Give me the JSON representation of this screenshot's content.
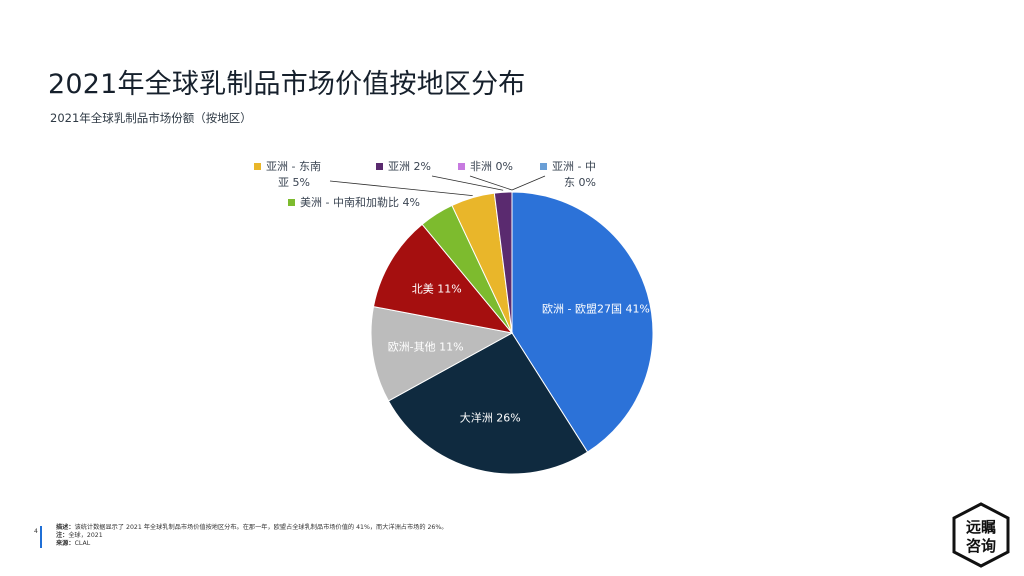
{
  "page": {
    "title": "2021年全球乳制品市场价值按地区分布",
    "subtitle": "2021年全球乳制品市场份额（按地区）",
    "page_number": "4",
    "footer": {
      "desc_label": "描述：",
      "desc_text": "该统计数据显示了 2021 年全球乳制品市场价值按地区分布。在那一年，欧盟占全球乳制品市场价值的 41%，而大洋洲占市场的 26%。",
      "note_label": "注：",
      "note_text": "全球，2021",
      "source_label": "来源：",
      "source_text": "CLAL"
    },
    "logo": {
      "line1": "远瞩",
      "line2": "咨询"
    }
  },
  "chart_data": {
    "type": "pie",
    "slices": [
      {
        "label": "欧洲 - 欧盟27国 41%",
        "value": 41,
        "color": "#2c72d8"
      },
      {
        "label": "大洋洲 26%",
        "value": 26,
        "color": "#0f2a3f"
      },
      {
        "label": "欧洲-其他 11%",
        "value": 11,
        "color": "#bcbcbc"
      },
      {
        "label": "北美 11%",
        "value": 11,
        "color": "#a50f0f"
      },
      {
        "label": "美洲 - 中南和加勒比 4%",
        "value": 4,
        "color": "#7dbb2e"
      },
      {
        "label": "亚洲 - 东南亚 5%",
        "value": 5,
        "color": "#e9b62a"
      },
      {
        "label": "亚洲 2%",
        "value": 2,
        "color": "#5a2a6f"
      },
      {
        "label": "非洲 0%",
        "value": 0,
        "color": "#c77ae0"
      },
      {
        "label": "亚洲 - 中东 0%",
        "value": 0,
        "color": "#6a9fd6"
      }
    ],
    "external_labels": [
      {
        "lines": [
          "亚洲 - 东南",
          "亚 5%"
        ],
        "color": "#e9b62a"
      },
      {
        "lines": [
          "亚洲 2%"
        ],
        "color": "#5a2a6f"
      },
      {
        "lines": [
          "非洲 0%"
        ],
        "color": "#c77ae0"
      },
      {
        "lines": [
          "亚洲 - 中",
          "东 0%"
        ],
        "color": "#6a9fd6"
      },
      {
        "lines": [
          "美洲 - 中南和加勒比 4%"
        ],
        "color": "#7dbb2e"
      }
    ]
  }
}
